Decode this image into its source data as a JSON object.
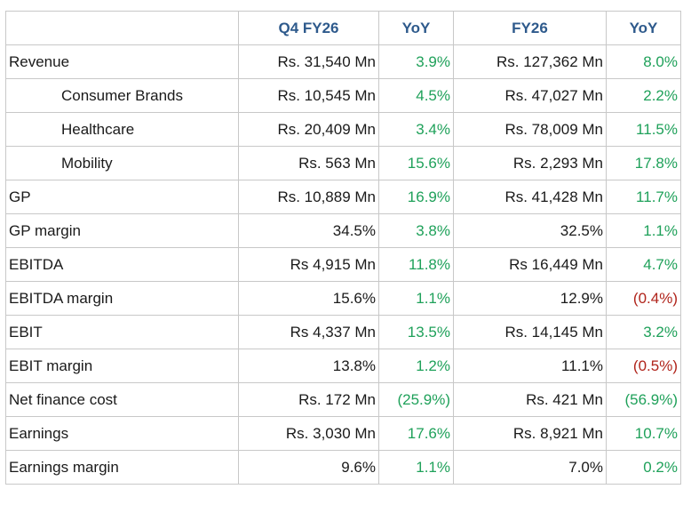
{
  "headers": [
    "",
    "Q4 FY26",
    "YoY",
    "FY26",
    "YoY"
  ],
  "rows": [
    {
      "label": "Revenue",
      "indent": false,
      "q4": "Rs. 31,540 Mn",
      "q4_yoy": "3.9%",
      "q4_yoy_sign": "pos",
      "fy": "Rs.  127,362 Mn",
      "fy_yoy": "8.0%",
      "fy_yoy_sign": "pos"
    },
    {
      "label": "Consumer Brands",
      "indent": true,
      "q4": "Rs. 10,545 Mn",
      "q4_yoy": "4.5%",
      "q4_yoy_sign": "pos",
      "fy": "Rs. 47,027 Mn",
      "fy_yoy": "2.2%",
      "fy_yoy_sign": "pos"
    },
    {
      "label": "Healthcare",
      "indent": true,
      "q4": "Rs. 20,409 Mn",
      "q4_yoy": "3.4%",
      "q4_yoy_sign": "pos",
      "fy": "Rs. 78,009 Mn",
      "fy_yoy": "11.5%",
      "fy_yoy_sign": "pos"
    },
    {
      "label": "Mobility",
      "indent": true,
      "q4": "Rs. 563 Mn",
      "q4_yoy": "15.6%",
      "q4_yoy_sign": "pos",
      "fy": "Rs. 2,293 Mn",
      "fy_yoy": "17.8%",
      "fy_yoy_sign": "pos"
    },
    {
      "label": "GP",
      "indent": false,
      "q4": "Rs. 10,889 Mn",
      "q4_yoy": "16.9%",
      "q4_yoy_sign": "pos",
      "fy": "Rs.  41,428 Mn",
      "fy_yoy": "11.7%",
      "fy_yoy_sign": "pos"
    },
    {
      "label": "GP margin",
      "indent": false,
      "q4": "34.5%",
      "q4_yoy": "3.8%",
      "q4_yoy_sign": "pos",
      "fy": "32.5%",
      "fy_yoy": "1.1%",
      "fy_yoy_sign": "pos"
    },
    {
      "label": "EBITDA",
      "indent": false,
      "q4": "Rs 4,915 Mn",
      "q4_yoy": "11.8%",
      "q4_yoy_sign": "pos",
      "fy": "Rs 16,449 Mn",
      "fy_yoy": "4.7%",
      "fy_yoy_sign": "pos"
    },
    {
      "label": "EBITDA margin",
      "indent": false,
      "q4": "15.6%",
      "q4_yoy": "1.1%",
      "q4_yoy_sign": "pos",
      "fy": "12.9%",
      "fy_yoy": "(0.4%)",
      "fy_yoy_sign": "neg"
    },
    {
      "label": "EBIT",
      "indent": false,
      "q4": "Rs 4,337 Mn",
      "q4_yoy": "13.5%",
      "q4_yoy_sign": "pos",
      "fy": "Rs.  14,145 Mn",
      "fy_yoy": "3.2%",
      "fy_yoy_sign": "pos"
    },
    {
      "label": "EBIT margin",
      "indent": false,
      "q4": "13.8%",
      "q4_yoy": "1.2%",
      "q4_yoy_sign": "pos",
      "fy": "11.1%",
      "fy_yoy": "(0.5%)",
      "fy_yoy_sign": "neg"
    },
    {
      "label": "Net finance cost",
      "indent": false,
      "q4": "Rs. 172 Mn",
      "q4_yoy": "(25.9%)",
      "q4_yoy_sign": "pos",
      "fy": "Rs. 421 Mn",
      "fy_yoy": "(56.9%)",
      "fy_yoy_sign": "pos"
    },
    {
      "label": "Earnings",
      "indent": false,
      "q4": "Rs. 3,030 Mn",
      "q4_yoy": "17.6%",
      "q4_yoy_sign": "pos",
      "fy": "Rs. 8,921 Mn",
      "fy_yoy": "10.7%",
      "fy_yoy_sign": "pos"
    },
    {
      "label": "Earnings margin",
      "indent": false,
      "q4": "9.6%",
      "q4_yoy": "1.1%",
      "q4_yoy_sign": "pos",
      "fy": "7.0%",
      "fy_yoy": "0.2%",
      "fy_yoy_sign": "pos"
    }
  ],
  "colors": {
    "header": "#2e5a8c",
    "positive": "#1fa15a",
    "negative": "#b0241b",
    "border": "#c8c8c8"
  }
}
